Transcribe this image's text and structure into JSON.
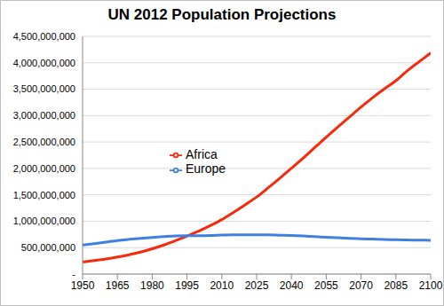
{
  "chart_data": {
    "type": "line",
    "title": "UN 2012 Population Projections",
    "x": [
      1950,
      1955,
      1960,
      1965,
      1970,
      1975,
      1980,
      1985,
      1990,
      1995,
      2000,
      2005,
      2010,
      2015,
      2020,
      2025,
      2030,
      2035,
      2040,
      2045,
      2050,
      2055,
      2060,
      2065,
      2070,
      2075,
      2080,
      2085,
      2090,
      2095,
      2100
    ],
    "series": [
      {
        "name": "Africa",
        "color": "#f5290c",
        "values": [
          229000000,
          255000000,
          285000000,
          322000000,
          366000000,
          416000000,
          478000000,
          550000000,
          632000000,
          720000000,
          811000000,
          916000000,
          1031000000,
          1166000000,
          1310000000,
          1458000000,
          1634000000,
          1816000000,
          2003000000,
          2193000000,
          2393000000,
          2591000000,
          2784000000,
          2974000000,
          3162000000,
          3340000000,
          3505000000,
          3660000000,
          3850000000,
          4020000000,
          4185000000
        ]
      },
      {
        "name": "Europe",
        "color": "#3f7fe0",
        "values": [
          549000000,
          576000000,
          605000000,
          635000000,
          657000000,
          677000000,
          694000000,
          708000000,
          721000000,
          727000000,
          726000000,
          729000000,
          738000000,
          742000000,
          744000000,
          744000000,
          741000000,
          736000000,
          730000000,
          721000000,
          709000000,
          698000000,
          687000000,
          677000000,
          669000000,
          662000000,
          655000000,
          650000000,
          645000000,
          642000000,
          639000000
        ]
      }
    ],
    "xlim": [
      1950,
      2100
    ],
    "xticks": [
      1950,
      1965,
      1980,
      1995,
      2010,
      2025,
      2040,
      2055,
      2070,
      2085,
      2100
    ],
    "ylim": [
      0,
      4500000000
    ],
    "yticks": [
      {
        "value": 0,
        "label": "-"
      },
      {
        "value": 500000000,
        "label": "500,000,000"
      },
      {
        "value": 1000000000,
        "label": "1,000,000,000"
      },
      {
        "value": 1500000000,
        "label": "1,500,000,000"
      },
      {
        "value": 2000000000,
        "label": "2,000,000,000"
      },
      {
        "value": 2500000000,
        "label": "2,500,000,000"
      },
      {
        "value": 3000000000,
        "label": "3,000,000,000"
      },
      {
        "value": 3500000000,
        "label": "3,500,000,000"
      },
      {
        "value": 4000000000,
        "label": "4,000,000,000"
      },
      {
        "value": 4500000000,
        "label": "4,500,000,000"
      }
    ],
    "grid": true,
    "legend": "center"
  }
}
